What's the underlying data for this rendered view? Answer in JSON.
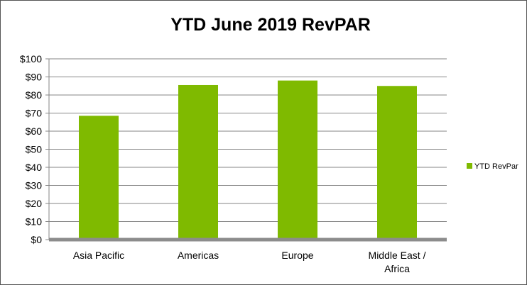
{
  "chart_data": {
    "type": "bar",
    "title": "YTD June 2019 RevPAR",
    "categories": [
      "Asia Pacific",
      "Americas",
      "Europe",
      "Middle East / Africa"
    ],
    "category_lines": [
      [
        "Asia Pacific"
      ],
      [
        "Americas"
      ],
      [
        "Europe"
      ],
      [
        "Middle East /",
        "Africa"
      ]
    ],
    "series": [
      {
        "name": "YTD RevPar",
        "values": [
          68.5,
          85.5,
          88,
          85
        ]
      }
    ],
    "y_ticks": [
      "$0",
      "$10",
      "$20",
      "$30",
      "$40",
      "$50",
      "$60",
      "$70",
      "$80",
      "$90",
      "$100"
    ],
    "ylim": [
      0,
      100
    ],
    "grid": true,
    "legend_position": "right",
    "colors": {
      "bar": "#7fba00",
      "grid": "#868686",
      "axis": "#8c8c8c"
    }
  }
}
